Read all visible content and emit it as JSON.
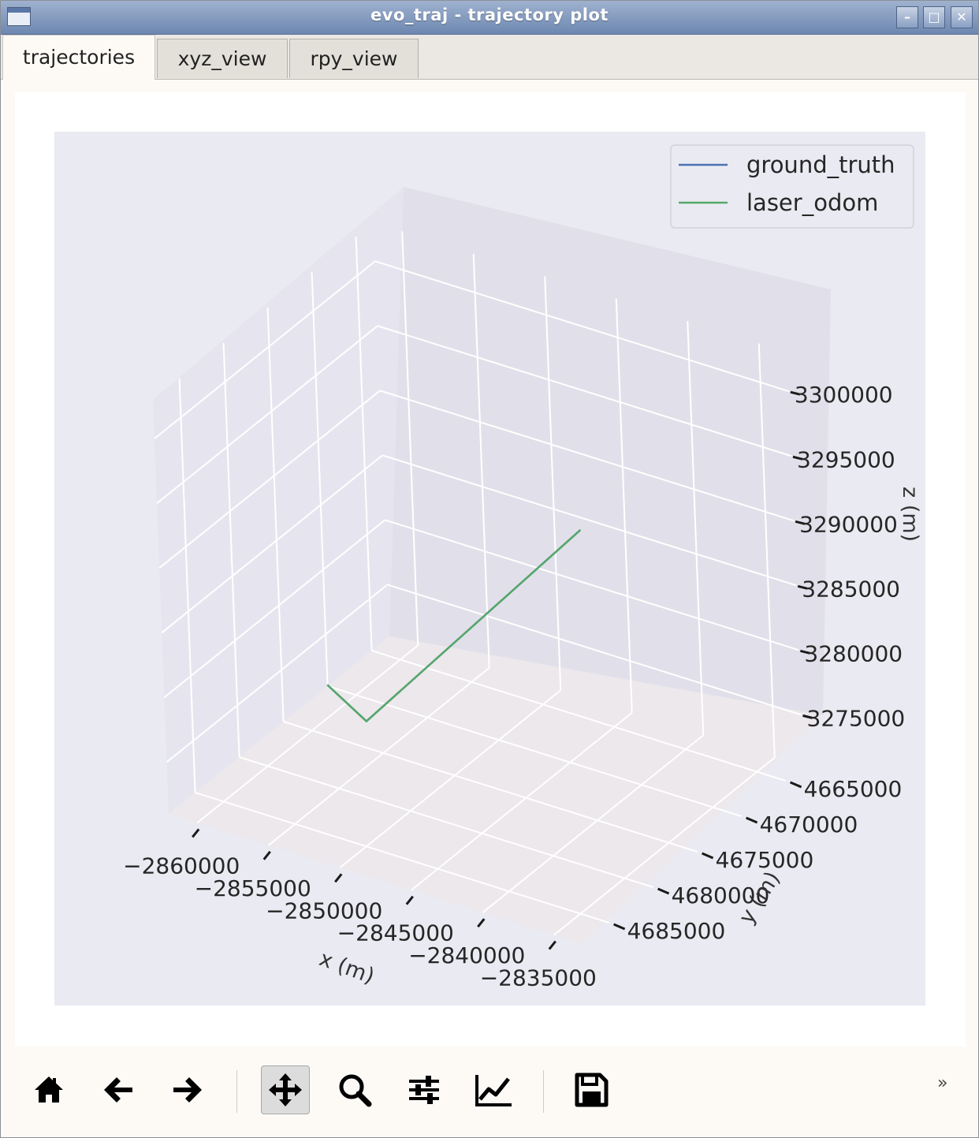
{
  "window": {
    "title": "evo_traj - trajectory plot",
    "buttons": [
      "minimize",
      "maximize",
      "close"
    ]
  },
  "tabs": [
    {
      "label": "trajectories",
      "active": true
    },
    {
      "label": "xyz_view",
      "active": false
    },
    {
      "label": "rpy_view",
      "active": false
    }
  ],
  "chart_data": {
    "type": "line",
    "projection": "3d",
    "title": "",
    "xlabel": "x (m)",
    "ylabel": "y (m)",
    "zlabel": "z (m)",
    "xlim": [
      -2862000,
      -2833000
    ],
    "ylim": [
      4663000,
      4688000
    ],
    "zlim": [
      3271000,
      3303000
    ],
    "x_ticks": [
      "−2860000",
      "−2855000",
      "−2850000",
      "−2845000",
      "−2840000",
      "−2835000"
    ],
    "y_ticks": [
      "4665000",
      "4670000",
      "4675000",
      "4680000",
      "4685000"
    ],
    "z_ticks": [
      "3275000",
      "3280000",
      "3285000",
      "3290000",
      "3295000",
      "3300000"
    ],
    "legend": {
      "position": "upper-right",
      "entries": [
        "ground_truth",
        "laser_odom"
      ]
    },
    "grid": true,
    "background": "#eaeaf2",
    "series": [
      {
        "name": "ground_truth",
        "color": "#4c72b0",
        "points": [
          [
            -2857500,
            4677000,
            3276500
          ],
          [
            -2854500,
            4677500,
            3275000
          ],
          [
            -2839000,
            4677200,
            3295000
          ]
        ]
      },
      {
        "name": "laser_odom",
        "color": "#55a868",
        "points": [
          [
            -2857500,
            4677000,
            3276500
          ],
          [
            -2854500,
            4677500,
            3275000
          ],
          [
            -2839000,
            4677200,
            3295000
          ]
        ]
      }
    ]
  },
  "toolbar": {
    "buttons": [
      {
        "name": "home-icon",
        "tooltip": "Home"
      },
      {
        "name": "back-arrow-icon",
        "tooltip": "Back"
      },
      {
        "name": "forward-arrow-icon",
        "tooltip": "Forward"
      },
      {
        "name": "pan-icon",
        "tooltip": "Pan",
        "pressed": true
      },
      {
        "name": "zoom-icon",
        "tooltip": "Zoom"
      },
      {
        "name": "subplots-config-icon",
        "tooltip": "Subplots"
      },
      {
        "name": "axes-edit-icon",
        "tooltip": "Customize"
      },
      {
        "name": "save-icon",
        "tooltip": "Save"
      }
    ],
    "more": "»"
  }
}
